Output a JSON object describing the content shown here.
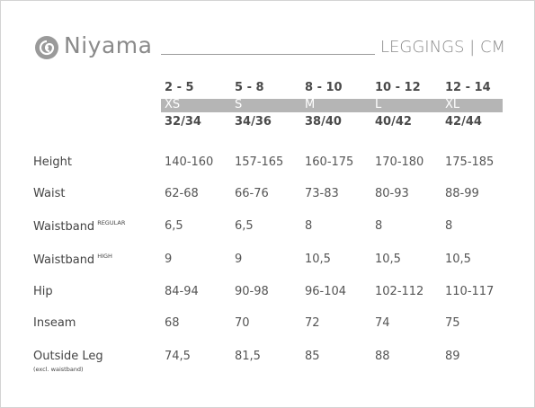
{
  "header": {
    "logo": "Niyama",
    "title": "LEGGINGS | CM"
  },
  "table": {
    "columns": [
      {
        "age": "2 - 5",
        "size": "XS",
        "eu": "32/34"
      },
      {
        "age": "5 - 8",
        "size": "S",
        "eu": "34/36"
      },
      {
        "age": "8 - 10",
        "size": "M",
        "eu": "38/40"
      },
      {
        "age": "10 - 12",
        "size": "L",
        "eu": "40/42"
      },
      {
        "age": "12 - 14",
        "size": "XL",
        "eu": "42/44"
      }
    ],
    "rows": [
      {
        "label": "Height",
        "values": [
          "140-160",
          "157-165",
          "160-175",
          "170-180",
          "175-185"
        ]
      },
      {
        "label": "Waist",
        "values": [
          "62-68",
          "66-76",
          "73-83",
          "80-93",
          "88-99"
        ]
      },
      {
        "label": "Waistband",
        "sup": "REGULAR",
        "values": [
          "6,5",
          "6,5",
          "8",
          "8",
          "8"
        ]
      },
      {
        "label": "Waistband",
        "sup": "HIGH",
        "values": [
          "9",
          "9",
          "10,5",
          "10,5",
          "10,5"
        ]
      },
      {
        "label": "Hip",
        "values": [
          "84-94",
          "90-98",
          "96-104",
          "102-112",
          "110-117"
        ]
      },
      {
        "label": "Inseam",
        "values": [
          "68",
          "70",
          "72",
          "74",
          "75"
        ]
      },
      {
        "label": "Outside Leg",
        "note": "(excl. waistband)",
        "values": [
          "74,5",
          "81,5",
          "85",
          "88",
          "89"
        ]
      }
    ]
  }
}
